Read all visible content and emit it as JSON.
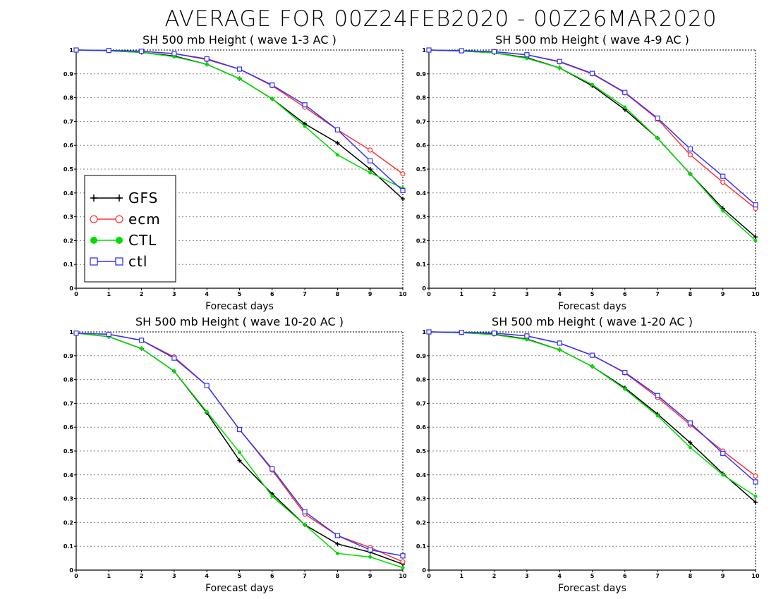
{
  "figure_title": "AVERAGE FOR 00Z24FEB2020 - 00Z26MAR2020",
  "chart_data": [
    {
      "type": "line",
      "title": "SH 500 mb Height ( wave 1-3 AC )",
      "xlabel": "Forecast days",
      "ylabel": "",
      "x": [
        0,
        1,
        2,
        3,
        4,
        5,
        6,
        7,
        8,
        9,
        10
      ],
      "xlim": [
        0,
        10
      ],
      "ylim": [
        0,
        1
      ],
      "xticks": [
        "0",
        "1",
        "2",
        "3",
        "4",
        "5",
        "6",
        "7",
        "8",
        "9",
        "10"
      ],
      "yticks": [
        "0",
        "0.1",
        "0.2",
        "0.3",
        "0.4",
        "0.5",
        "0.6",
        "0.7",
        "0.8",
        "0.9",
        "1"
      ],
      "grid": "horizontal dotted",
      "legend": {
        "placement": "middle-left"
      },
      "series": [
        {
          "name": "GFS",
          "values": [
            1.0,
            0.997,
            0.99,
            0.975,
            0.94,
            0.88,
            0.795,
            0.69,
            0.61,
            0.5,
            0.375
          ]
        },
        {
          "name": "ecm",
          "values": [
            1.0,
            0.998,
            0.995,
            0.985,
            0.96,
            0.92,
            0.85,
            0.76,
            0.665,
            0.58,
            0.48
          ]
        },
        {
          "name": "CTL",
          "values": [
            1.0,
            0.997,
            0.99,
            0.972,
            0.94,
            0.88,
            0.795,
            0.68,
            0.56,
            0.485,
            0.42
          ]
        },
        {
          "name": "ctl",
          "values": [
            1.0,
            0.998,
            0.995,
            0.985,
            0.963,
            0.92,
            0.853,
            0.77,
            0.665,
            0.535,
            0.41
          ]
        }
      ]
    },
    {
      "type": "line",
      "title": "SH 500 mb Height ( wave 4-9 AC )",
      "xlabel": "Forecast days",
      "ylabel": "",
      "x": [
        0,
        1,
        2,
        3,
        4,
        5,
        6,
        7,
        8,
        9,
        10
      ],
      "xlim": [
        0,
        10
      ],
      "ylim": [
        0,
        1
      ],
      "xticks": [
        "0",
        "1",
        "2",
        "3",
        "4",
        "5",
        "6",
        "7",
        "8",
        "9",
        "10"
      ],
      "yticks": [
        "0",
        "0.1",
        "0.2",
        "0.3",
        "0.4",
        "0.5",
        "0.6",
        "0.7",
        "0.8",
        "0.9",
        "1"
      ],
      "grid": "horizontal dotted",
      "series": [
        {
          "name": "GFS",
          "values": [
            1.0,
            0.996,
            0.988,
            0.968,
            0.925,
            0.85,
            0.75,
            0.63,
            0.48,
            0.335,
            0.215
          ]
        },
        {
          "name": "ecm",
          "values": [
            1.0,
            0.997,
            0.993,
            0.98,
            0.95,
            0.9,
            0.82,
            0.71,
            0.56,
            0.445,
            0.335
          ]
        },
        {
          "name": "CTL",
          "values": [
            1.0,
            0.996,
            0.988,
            0.965,
            0.925,
            0.855,
            0.76,
            0.63,
            0.48,
            0.325,
            0.2
          ]
        },
        {
          "name": "ctl",
          "values": [
            1.0,
            0.997,
            0.993,
            0.98,
            0.952,
            0.902,
            0.822,
            0.714,
            0.585,
            0.47,
            0.35
          ]
        }
      ]
    },
    {
      "type": "line",
      "title": "SH 500 mb Height ( wave 10-20 AC )",
      "xlabel": "Forecast days",
      "ylabel": "",
      "x": [
        0,
        1,
        2,
        3,
        4,
        5,
        6,
        7,
        8,
        9,
        10
      ],
      "xlim": [
        0,
        10
      ],
      "ylim": [
        0,
        1
      ],
      "xticks": [
        "0",
        "1",
        "2",
        "3",
        "4",
        "5",
        "6",
        "7",
        "8",
        "9",
        "10"
      ],
      "yticks": [
        "0",
        "0.1",
        "0.2",
        "0.3",
        "0.4",
        "0.5",
        "0.6",
        "0.7",
        "0.8",
        "0.9",
        "1"
      ],
      "grid": "horizontal dotted",
      "series": [
        {
          "name": "GFS",
          "values": [
            0.995,
            0.98,
            0.93,
            0.835,
            0.66,
            0.46,
            0.32,
            0.19,
            0.11,
            0.075,
            0.025
          ]
        },
        {
          "name": "ecm",
          "values": [
            0.995,
            0.99,
            0.965,
            0.895,
            0.775,
            0.59,
            0.42,
            0.235,
            0.145,
            0.095,
            0.035
          ]
        },
        {
          "name": "CTL",
          "values": [
            0.995,
            0.98,
            0.93,
            0.835,
            0.665,
            0.495,
            0.31,
            0.19,
            0.07,
            0.055,
            0.01
          ]
        },
        {
          "name": "ctl",
          "values": [
            0.995,
            0.99,
            0.965,
            0.89,
            0.775,
            0.59,
            0.425,
            0.245,
            0.145,
            0.085,
            0.06
          ]
        }
      ]
    },
    {
      "type": "line",
      "title": "SH 500 mb Height ( wave 1-20 AC )",
      "xlabel": "Forecast days",
      "ylabel": "",
      "x": [
        0,
        1,
        2,
        3,
        4,
        5,
        6,
        7,
        8,
        9,
        10
      ],
      "xlim": [
        0,
        10
      ],
      "ylim": [
        0,
        1
      ],
      "xticks": [
        "0",
        "1",
        "2",
        "3",
        "4",
        "5",
        "6",
        "7",
        "8",
        "9",
        "10"
      ],
      "yticks": [
        "0",
        "0.1",
        "0.2",
        "0.3",
        "0.4",
        "0.5",
        "0.6",
        "0.7",
        "0.8",
        "0.9",
        "1"
      ],
      "grid": "horizontal dotted",
      "series": [
        {
          "name": "GFS",
          "values": [
            1.0,
            0.997,
            0.99,
            0.97,
            0.925,
            0.855,
            0.765,
            0.655,
            0.535,
            0.405,
            0.285
          ]
        },
        {
          "name": "ecm",
          "values": [
            1.0,
            0.998,
            0.995,
            0.983,
            0.953,
            0.902,
            0.828,
            0.725,
            0.61,
            0.5,
            0.395
          ]
        },
        {
          "name": "CTL",
          "values": [
            1.0,
            0.997,
            0.988,
            0.968,
            0.925,
            0.855,
            0.76,
            0.648,
            0.515,
            0.4,
            0.31
          ]
        },
        {
          "name": "ctl",
          "values": [
            1.0,
            0.998,
            0.995,
            0.983,
            0.953,
            0.902,
            0.83,
            0.733,
            0.618,
            0.49,
            0.37
          ]
        }
      ]
    }
  ],
  "legend_items": [
    {
      "name": "GFS",
      "marker": "plus",
      "color": "#000000"
    },
    {
      "name": "ecm",
      "marker": "circle-open",
      "color": "#ff3333"
    },
    {
      "name": "CTL",
      "marker": "circle-filled",
      "color": "#00dd00"
    },
    {
      "name": "ctl",
      "marker": "square-open",
      "color": "#3333ff"
    }
  ],
  "series_colors": {
    "GFS": "#000000",
    "ecm": "#ff3333",
    "CTL": "#00dd00",
    "ctl": "#3333ff"
  }
}
